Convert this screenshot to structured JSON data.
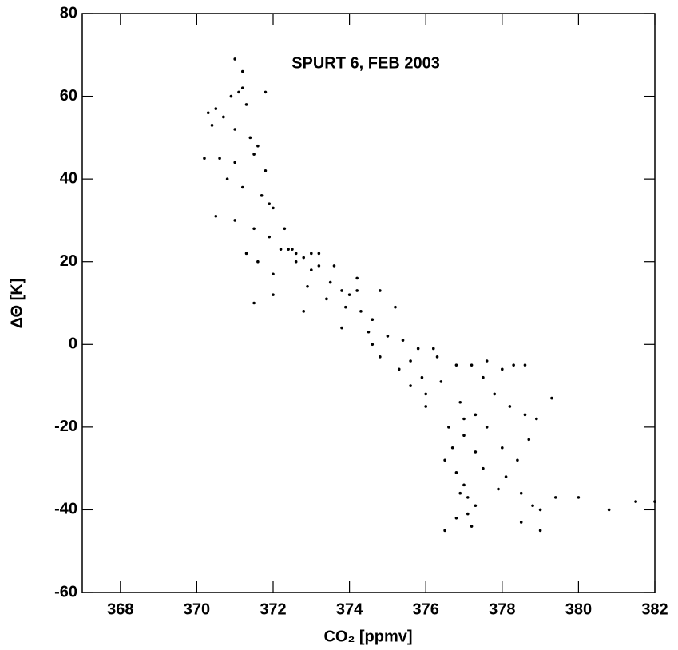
{
  "chart_data": {
    "type": "scatter",
    "title": "SPURT 6, FEB 2003",
    "x_label": "CO₂ [ppmv]",
    "y_label": "ΔΘ [K]",
    "color": "#000000",
    "x": [
      371.0,
      371.2,
      371.1,
      370.9,
      371.3,
      370.5,
      370.7,
      371.0,
      371.4,
      371.6,
      370.3,
      370.6,
      371.0,
      371.5,
      371.8,
      370.8,
      371.2,
      371.7,
      372.0,
      370.5,
      371.0,
      371.5,
      371.9,
      371.3,
      371.6,
      372.2,
      372.5,
      372.8,
      373.2,
      372.0,
      372.6,
      373.0,
      373.5,
      373.8,
      374.0,
      372.9,
      373.4,
      373.9,
      374.3,
      374.6,
      373.0,
      373.6,
      374.2,
      374.8,
      375.2,
      371.5,
      372.0,
      372.8,
      374.5,
      375.0,
      375.4,
      375.8,
      374.8,
      375.3,
      375.9,
      376.3,
      376.8,
      377.2,
      377.6,
      378.0,
      378.3,
      375.6,
      376.0,
      376.4,
      376.9,
      377.3,
      377.0,
      376.7,
      376.5,
      376.8,
      377.0,
      377.1,
      377.3,
      377.8,
      378.2,
      378.6,
      378.9,
      378.7,
      378.4,
      378.1,
      378.5,
      379.0,
      379.3,
      376.5,
      376.8,
      377.2,
      377.6,
      378.0,
      377.5,
      377.9,
      378.5,
      379.0,
      380.0,
      380.8,
      381.5,
      382.0,
      377.1,
      376.9,
      377.3,
      377.0,
      378.8,
      379.4,
      372.4,
      372.6,
      371.2,
      371.8,
      370.4,
      370.2,
      371.9,
      372.3,
      373.2,
      374.2,
      375.6,
      376.2,
      377.5,
      378.6,
      373.8,
      374.6,
      376.0,
      376.6
    ],
    "values": [
      69,
      66,
      61,
      60,
      58,
      57,
      55,
      52,
      50,
      48,
      56,
      45,
      44,
      46,
      42,
      40,
      38,
      36,
      33,
      31,
      30,
      28,
      26,
      22,
      20,
      23,
      23,
      21,
      19,
      17,
      20,
      18,
      15,
      13,
      12,
      14,
      11,
      9,
      8,
      6,
      22,
      19,
      16,
      13,
      9,
      10,
      12,
      8,
      3,
      2,
      1,
      -1,
      -3,
      -6,
      -8,
      -3,
      -5,
      -5,
      -4,
      -6,
      -5,
      -10,
      -12,
      -9,
      -14,
      -17,
      -22,
      -25,
      -28,
      -31,
      -34,
      -37,
      -39,
      -12,
      -15,
      -17,
      -18,
      -23,
      -28,
      -32,
      -36,
      -40,
      -13,
      -45,
      -42,
      -44,
      -20,
      -25,
      -30,
      -35,
      -43,
      -45,
      -37,
      -40,
      -38,
      -38,
      -41,
      -36,
      -26,
      -18,
      -39,
      -37,
      23,
      22,
      62,
      61,
      53,
      45,
      34,
      28,
      22,
      13,
      -4,
      -1,
      -8,
      -5,
      4,
      0,
      -15,
      -20
    ],
    "xlim": [
      367,
      382
    ],
    "xticks": [
      368,
      370,
      372,
      374,
      376,
      378,
      380,
      382
    ],
    "ylim": [
      -60,
      80
    ],
    "yticks": [
      -60,
      -40,
      -20,
      0,
      20,
      40,
      60,
      80
    ]
  }
}
